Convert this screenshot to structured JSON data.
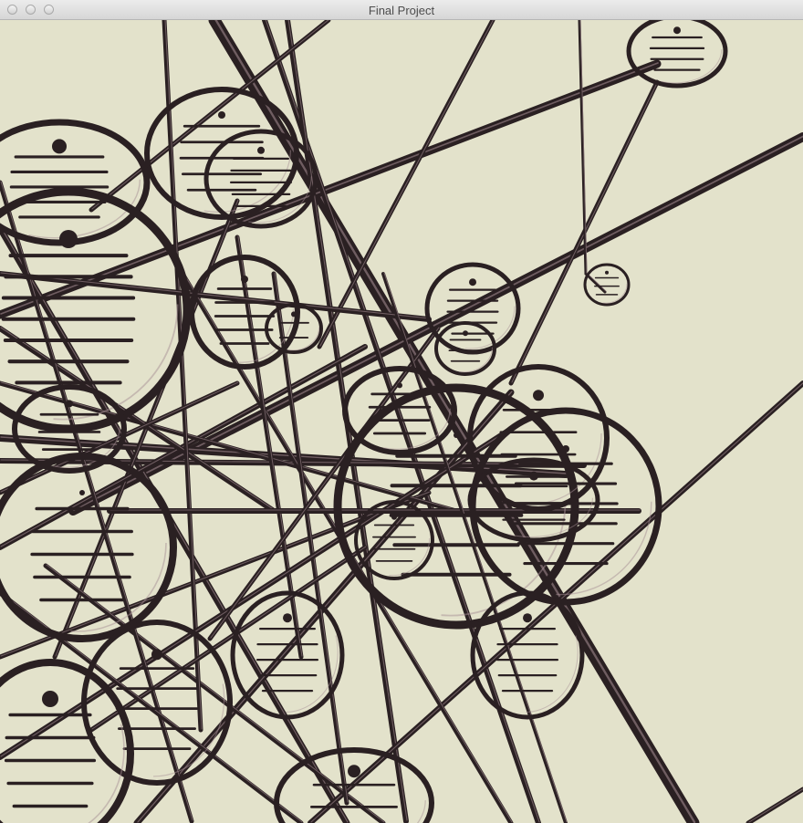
{
  "window": {
    "title": "Final Project"
  },
  "scene": {
    "description_kind": "3D rendered graph of ring nodes connected by tubes",
    "background_color": "#e3e2cb",
    "tube_color": "#2a2022",
    "highlight_color": "#a89096"
  }
}
